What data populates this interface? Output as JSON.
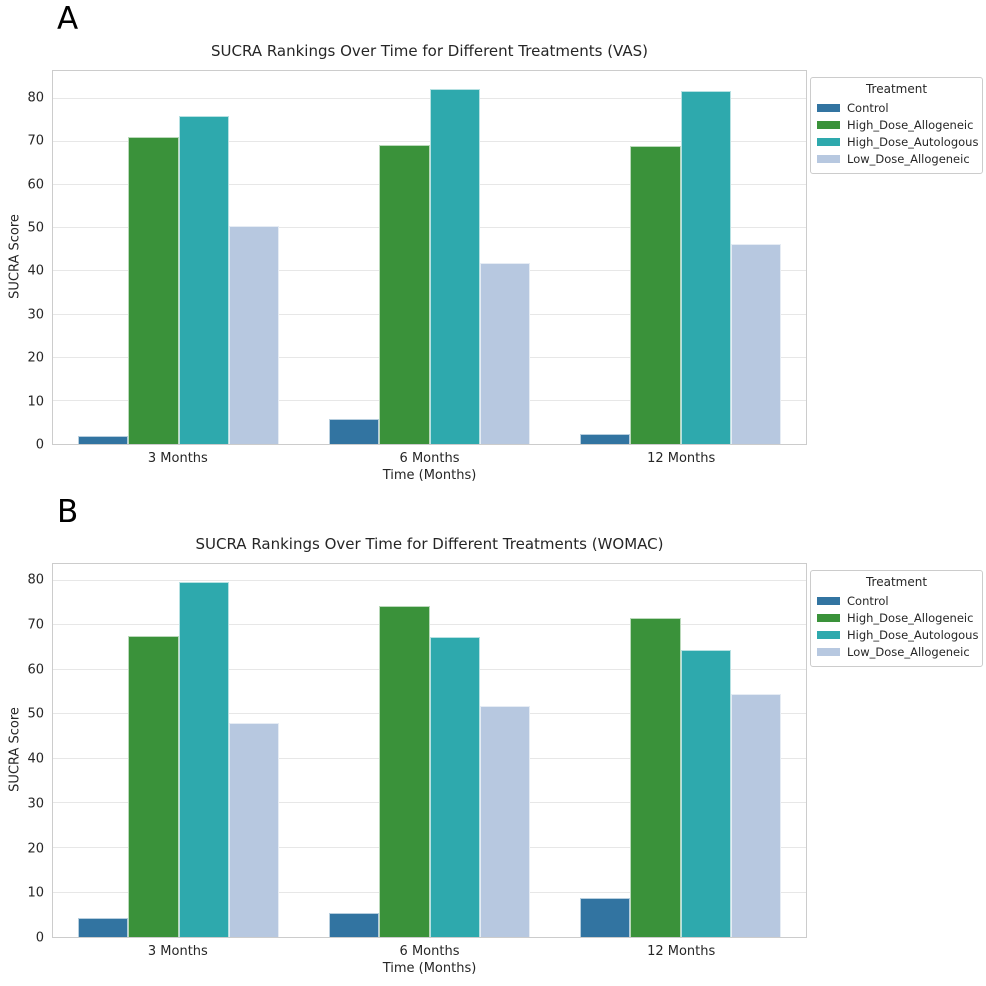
{
  "figure": {
    "panels": [
      {
        "letter": "A"
      },
      {
        "letter": "B"
      }
    ]
  },
  "palette": {
    "control": "#3274a1",
    "high_dose_allogeneic": "#3a923a",
    "high_dose_autologous": "#2ea9ad",
    "low_dose_allogeneic": "#b7c8e0",
    "gridline": "#e7e7e7",
    "spine": "#cccccc"
  },
  "chart_data": [
    {
      "type": "bar",
      "title": "SUCRA Rankings Over Time for Different Treatments (VAS)",
      "xlabel": "Time (Months)",
      "ylabel": "SUCRA Score",
      "categories": [
        "3 Months",
        "6 Months",
        "12 Months"
      ],
      "series": [
        {
          "name": "Control",
          "color": "#3274a1",
          "values": [
            1.9,
            5.8,
            2.3
          ]
        },
        {
          "name": "High_Dose_Allogeneic",
          "color": "#3a923a",
          "values": [
            71.2,
            69.3,
            69.1
          ]
        },
        {
          "name": "High_Dose_Autologous",
          "color": "#2ea9ad",
          "values": [
            76.0,
            82.3,
            81.7
          ]
        },
        {
          "name": "Low_Dose_Allogeneic",
          "color": "#b7c8e0",
          "values": [
            50.4,
            42.0,
            46.3
          ]
        }
      ],
      "yticks": [
        0,
        10,
        20,
        30,
        40,
        50,
        60,
        70,
        80
      ],
      "ylim": [
        0,
        86.4
      ],
      "grid": true,
      "legend_title": "Treatment",
      "legend_position": "outside upper right"
    },
    {
      "type": "bar",
      "title": "SUCRA Rankings Over Time for Different Treatments (WOMAC)",
      "xlabel": "Time (Months)",
      "ylabel": "SUCRA Score",
      "categories": [
        "3 Months",
        "6 Months",
        "12 Months"
      ],
      "series": [
        {
          "name": "Control",
          "color": "#3274a1",
          "values": [
            4.3,
            5.5,
            8.8
          ]
        },
        {
          "name": "High_Dose_Allogeneic",
          "color": "#3a923a",
          "values": [
            67.7,
            74.4,
            71.6
          ]
        },
        {
          "name": "High_Dose_Autologous",
          "color": "#2ea9ad",
          "values": [
            79.8,
            67.5,
            64.4
          ]
        },
        {
          "name": "Low_Dose_Allogeneic",
          "color": "#b7c8e0",
          "values": [
            48.0,
            51.9,
            54.6
          ]
        }
      ],
      "yticks": [
        0,
        10,
        20,
        30,
        40,
        50,
        60,
        70,
        80
      ],
      "ylim": [
        0,
        83.8
      ],
      "grid": true,
      "legend_title": "Treatment",
      "legend_position": "outside upper right"
    }
  ]
}
